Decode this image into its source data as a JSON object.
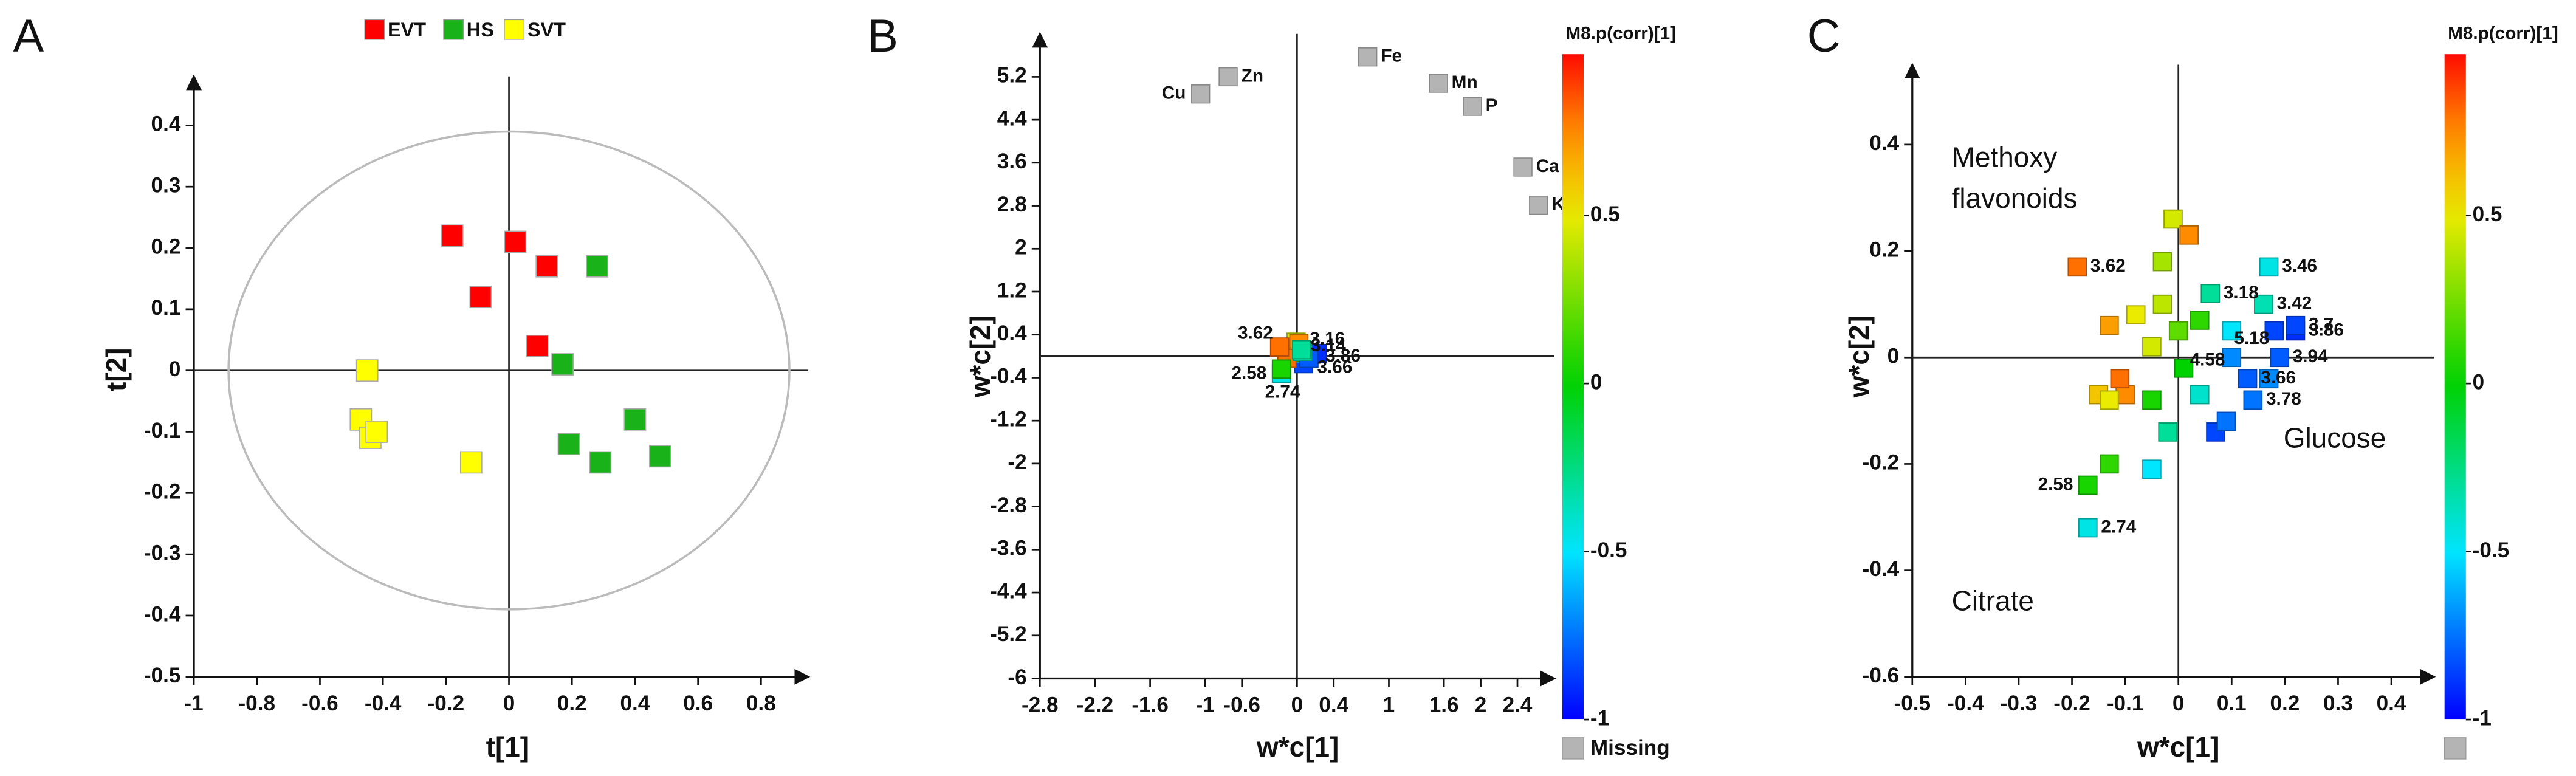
{
  "chart_data": [
    {
      "type": "scatter",
      "panel_label": "A",
      "xlabel": "t[1]",
      "ylabel": "t[2]",
      "xlim": [
        -1,
        0.95
      ],
      "ylim": [
        -0.5,
        0.48
      ],
      "xticks": [
        -1,
        -0.8,
        -0.6,
        -0.4,
        -0.2,
        0,
        0.2,
        0.4,
        0.6,
        0.8
      ],
      "yticks": [
        -0.5,
        -0.4,
        -0.3,
        -0.2,
        -0.1,
        0,
        0.1,
        0.2,
        0.3,
        0.4
      ],
      "legend": "top",
      "ellipse_radii": [
        0.89,
        0.39
      ],
      "series": [
        {
          "name": "EVT",
          "color": "#ff0000",
          "x": [
            -0.18,
            -0.09,
            0.02,
            0.12,
            0.09
          ],
          "y": [
            0.22,
            0.12,
            0.21,
            0.17,
            0.04
          ]
        },
        {
          "name": "HS",
          "color": "#19b319",
          "x": [
            0.28,
            0.17,
            0.19,
            0.29,
            0.4,
            0.48
          ],
          "y": [
            0.17,
            0.01,
            -0.12,
            -0.15,
            -0.08,
            -0.14
          ]
        },
        {
          "name": "SVT",
          "color": "#ffff00",
          "x": [
            -0.45,
            -0.47,
            -0.44,
            -0.42,
            -0.12
          ],
          "y": [
            0,
            -0.08,
            -0.11,
            -0.1,
            -0.15
          ]
        }
      ]
    },
    {
      "type": "scatter",
      "panel_label": "B",
      "xlabel": "w*c[1]",
      "ylabel": "w*c[2]",
      "xlim": [
        -2.8,
        2.8
      ],
      "ylim": [
        -6,
        6
      ],
      "xticks": [
        -2.8,
        -2.2,
        -1.6,
        -1,
        -0.6,
        0,
        0.4,
        1,
        1.6,
        2,
        2.4
      ],
      "yticks": [
        -6,
        -5.2,
        -4.4,
        -3.6,
        -2.8,
        -2,
        -1.2,
        -0.4,
        0.4,
        1.2,
        2,
        2.8,
        3.6,
        4.4,
        5.2
      ],
      "colorbar": {
        "title": "M8.p(corr)[1]",
        "lim": [
          -1,
          0.98
        ],
        "ticks": [
          -1,
          -0.5,
          0,
          0.5
        ]
      },
      "points": {
        "x": [
          -0.19,
          -0.17,
          -0.17,
          0.05,
          0.06,
          0.13,
          0.22,
          -0.11,
          0.02,
          -0.01,
          0.04,
          0.1,
          0.07,
          -0.05
        ],
        "y": [
          0.17,
          -0.24,
          -0.32,
          0.12,
          0.09,
          -0.04,
          0.05,
          -0.04,
          0.23,
          0.26,
          0.07,
          0.05,
          -0.14,
          0.02
        ],
        "corr": [
          0.8,
          0.05,
          -0.45,
          -0.3,
          -0.35,
          -0.8,
          -0.9,
          0.8,
          0.75,
          0.45,
          0.1,
          -0.5,
          -0.85,
          0.45
        ],
        "labels": [
          "3.62",
          "2.58",
          "2.74",
          "3.16",
          "3.14",
          "3.66",
          "3.86",
          null,
          null,
          null,
          null,
          null,
          null,
          null
        ]
      },
      "missing": {
        "name": "Missing",
        "color": "#b4b4b4",
        "x": [
          -1.05,
          -0.75,
          0.77,
          1.54,
          1.91,
          2.46,
          2.63
        ],
        "y": [
          4.88,
          5.2,
          5.57,
          5.08,
          4.65,
          3.52,
          2.81
        ],
        "labels": [
          "Cu",
          "Zn",
          "Fe",
          "Mn",
          "P",
          "Ca",
          "K"
        ]
      }
    },
    {
      "type": "scatter",
      "panel_label": "C",
      "xlabel": "w*c[1]",
      "ylabel": "w*c[2]",
      "xlim": [
        -0.5,
        0.48
      ],
      "ylim": [
        -0.6,
        0.55
      ],
      "xticks": [
        -0.5,
        -0.4,
        -0.3,
        -0.2,
        -0.1,
        0,
        0.1,
        0.2,
        0.3,
        0.4
      ],
      "yticks": [
        -0.6,
        -0.4,
        -0.2,
        0,
        0.2,
        0.4
      ],
      "colorbar": {
        "title": "M8.p(corr)[1]",
        "lim": [
          -1,
          0.98
        ],
        "ticks": [
          -1,
          -0.5,
          0,
          0.5
        ]
      },
      "annotations": [
        "Methoxy",
        "flavonoids",
        "Glucose",
        "Citrate"
      ],
      "points": {
        "x": [
          -0.19,
          -0.17,
          -0.17,
          -0.13,
          -0.05,
          0.17,
          0.06,
          0.16,
          0.22,
          0.13,
          0.14,
          0.18,
          0.22,
          0.1,
          0.19,
          0.02,
          -0.01,
          -0.03,
          -0.13,
          -0.11,
          -0.08,
          0.04,
          -0.13,
          -0.1,
          -0.05,
          0.01,
          0.04,
          0.09,
          0.07,
          -0.02,
          -0.05,
          0.17,
          0.1,
          -0.03,
          0,
          -0.15
        ],
        "y": [
          0.17,
          -0.24,
          -0.32,
          -0.2,
          -0.21,
          0.17,
          0.12,
          0.1,
          0.06,
          -0.04,
          -0.08,
          0.05,
          0.05,
          0,
          0,
          0.23,
          0.26,
          0.18,
          0.06,
          -0.04,
          0.08,
          0.07,
          -0.08,
          -0.07,
          0.02,
          -0.02,
          -0.07,
          -0.12,
          -0.14,
          -0.14,
          -0.08,
          -0.04,
          0.05,
          0.1,
          0.05,
          -0.07
        ],
        "corr": [
          0.8,
          0.05,
          -0.45,
          0.1,
          -0.5,
          -0.45,
          -0.3,
          -0.35,
          -0.85,
          -0.8,
          -0.75,
          -0.85,
          -0.9,
          -0.7,
          -0.8,
          0.75,
          0.45,
          0.35,
          0.7,
          0.8,
          0.5,
          0.1,
          0.5,
          0.75,
          0.45,
          0,
          -0.4,
          -0.75,
          -0.85,
          -0.3,
          0.05,
          -0.7,
          -0.5,
          0.4,
          0.2,
          0.6
        ],
        "labels": [
          "3.62",
          "2.58",
          "2.74",
          null,
          null,
          "3.46",
          "3.18",
          "3.42",
          "3.7",
          "3.66",
          "3.78",
          "5.18",
          "3.86",
          "4.58",
          "3.94",
          null,
          null,
          null,
          null,
          null,
          null,
          null,
          null,
          null,
          null,
          null,
          null,
          null,
          null,
          null,
          null,
          null,
          null,
          null,
          null,
          null
        ]
      }
    }
  ]
}
